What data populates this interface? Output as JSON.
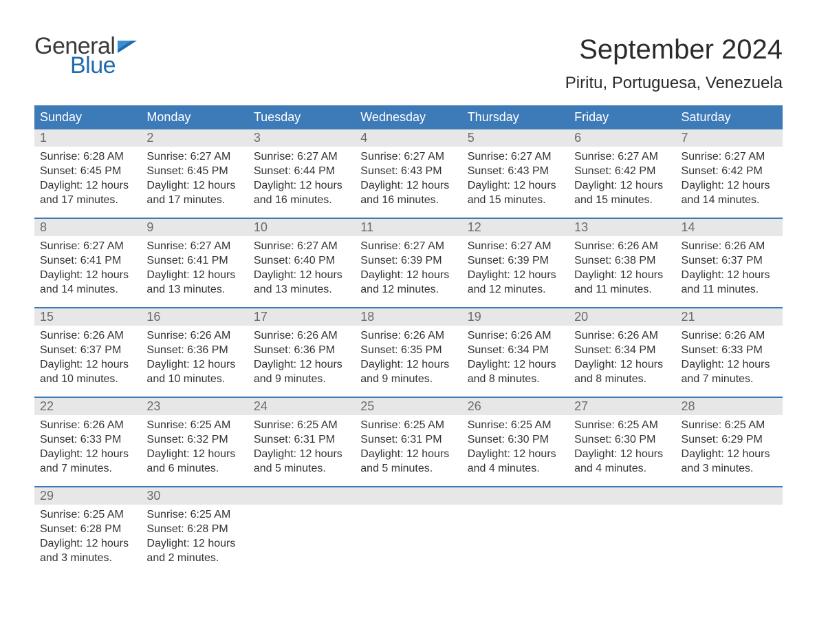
{
  "logo": {
    "word1": "General",
    "word2": "Blue",
    "word1_color": "#3a3a3a",
    "word2_color": "#1f6bb0",
    "flag_color": "#1f6bb0"
  },
  "title": "September 2024",
  "location": "Piritu, Portuguesa, Venezuela",
  "colors": {
    "header_bg": "#3d7ab8",
    "header_text": "#ffffff",
    "daynum_bg": "#e7e7e7",
    "daynum_text": "#6b6b6b",
    "body_text": "#333333",
    "row_border": "#3d7ab8",
    "page_bg": "#ffffff"
  },
  "typography": {
    "month_title_size": 40,
    "location_size": 24,
    "weekday_size": 18,
    "daynum_size": 18,
    "body_size": 16,
    "font_family": "Arial"
  },
  "layout": {
    "columns": 7,
    "rows": 5,
    "cell_min_height": 128
  },
  "weekdays": [
    "Sunday",
    "Monday",
    "Tuesday",
    "Wednesday",
    "Thursday",
    "Friday",
    "Saturday"
  ],
  "weeks": [
    [
      {
        "n": "1",
        "sunrise": "Sunrise: 6:28 AM",
        "sunset": "Sunset: 6:45 PM",
        "d1": "Daylight: 12 hours",
        "d2": "and 17 minutes."
      },
      {
        "n": "2",
        "sunrise": "Sunrise: 6:27 AM",
        "sunset": "Sunset: 6:45 PM",
        "d1": "Daylight: 12 hours",
        "d2": "and 17 minutes."
      },
      {
        "n": "3",
        "sunrise": "Sunrise: 6:27 AM",
        "sunset": "Sunset: 6:44 PM",
        "d1": "Daylight: 12 hours",
        "d2": "and 16 minutes."
      },
      {
        "n": "4",
        "sunrise": "Sunrise: 6:27 AM",
        "sunset": "Sunset: 6:43 PM",
        "d1": "Daylight: 12 hours",
        "d2": "and 16 minutes."
      },
      {
        "n": "5",
        "sunrise": "Sunrise: 6:27 AM",
        "sunset": "Sunset: 6:43 PM",
        "d1": "Daylight: 12 hours",
        "d2": "and 15 minutes."
      },
      {
        "n": "6",
        "sunrise": "Sunrise: 6:27 AM",
        "sunset": "Sunset: 6:42 PM",
        "d1": "Daylight: 12 hours",
        "d2": "and 15 minutes."
      },
      {
        "n": "7",
        "sunrise": "Sunrise: 6:27 AM",
        "sunset": "Sunset: 6:42 PM",
        "d1": "Daylight: 12 hours",
        "d2": "and 14 minutes."
      }
    ],
    [
      {
        "n": "8",
        "sunrise": "Sunrise: 6:27 AM",
        "sunset": "Sunset: 6:41 PM",
        "d1": "Daylight: 12 hours",
        "d2": "and 14 minutes."
      },
      {
        "n": "9",
        "sunrise": "Sunrise: 6:27 AM",
        "sunset": "Sunset: 6:41 PM",
        "d1": "Daylight: 12 hours",
        "d2": "and 13 minutes."
      },
      {
        "n": "10",
        "sunrise": "Sunrise: 6:27 AM",
        "sunset": "Sunset: 6:40 PM",
        "d1": "Daylight: 12 hours",
        "d2": "and 13 minutes."
      },
      {
        "n": "11",
        "sunrise": "Sunrise: 6:27 AM",
        "sunset": "Sunset: 6:39 PM",
        "d1": "Daylight: 12 hours",
        "d2": "and 12 minutes."
      },
      {
        "n": "12",
        "sunrise": "Sunrise: 6:27 AM",
        "sunset": "Sunset: 6:39 PM",
        "d1": "Daylight: 12 hours",
        "d2": "and 12 minutes."
      },
      {
        "n": "13",
        "sunrise": "Sunrise: 6:26 AM",
        "sunset": "Sunset: 6:38 PM",
        "d1": "Daylight: 12 hours",
        "d2": "and 11 minutes."
      },
      {
        "n": "14",
        "sunrise": "Sunrise: 6:26 AM",
        "sunset": "Sunset: 6:37 PM",
        "d1": "Daylight: 12 hours",
        "d2": "and 11 minutes."
      }
    ],
    [
      {
        "n": "15",
        "sunrise": "Sunrise: 6:26 AM",
        "sunset": "Sunset: 6:37 PM",
        "d1": "Daylight: 12 hours",
        "d2": "and 10 minutes."
      },
      {
        "n": "16",
        "sunrise": "Sunrise: 6:26 AM",
        "sunset": "Sunset: 6:36 PM",
        "d1": "Daylight: 12 hours",
        "d2": "and 10 minutes."
      },
      {
        "n": "17",
        "sunrise": "Sunrise: 6:26 AM",
        "sunset": "Sunset: 6:36 PM",
        "d1": "Daylight: 12 hours",
        "d2": "and 9 minutes."
      },
      {
        "n": "18",
        "sunrise": "Sunrise: 6:26 AM",
        "sunset": "Sunset: 6:35 PM",
        "d1": "Daylight: 12 hours",
        "d2": "and 9 minutes."
      },
      {
        "n": "19",
        "sunrise": "Sunrise: 6:26 AM",
        "sunset": "Sunset: 6:34 PM",
        "d1": "Daylight: 12 hours",
        "d2": "and 8 minutes."
      },
      {
        "n": "20",
        "sunrise": "Sunrise: 6:26 AM",
        "sunset": "Sunset: 6:34 PM",
        "d1": "Daylight: 12 hours",
        "d2": "and 8 minutes."
      },
      {
        "n": "21",
        "sunrise": "Sunrise: 6:26 AM",
        "sunset": "Sunset: 6:33 PM",
        "d1": "Daylight: 12 hours",
        "d2": "and 7 minutes."
      }
    ],
    [
      {
        "n": "22",
        "sunrise": "Sunrise: 6:26 AM",
        "sunset": "Sunset: 6:33 PM",
        "d1": "Daylight: 12 hours",
        "d2": "and 7 minutes."
      },
      {
        "n": "23",
        "sunrise": "Sunrise: 6:25 AM",
        "sunset": "Sunset: 6:32 PM",
        "d1": "Daylight: 12 hours",
        "d2": "and 6 minutes."
      },
      {
        "n": "24",
        "sunrise": "Sunrise: 6:25 AM",
        "sunset": "Sunset: 6:31 PM",
        "d1": "Daylight: 12 hours",
        "d2": "and 5 minutes."
      },
      {
        "n": "25",
        "sunrise": "Sunrise: 6:25 AM",
        "sunset": "Sunset: 6:31 PM",
        "d1": "Daylight: 12 hours",
        "d2": "and 5 minutes."
      },
      {
        "n": "26",
        "sunrise": "Sunrise: 6:25 AM",
        "sunset": "Sunset: 6:30 PM",
        "d1": "Daylight: 12 hours",
        "d2": "and 4 minutes."
      },
      {
        "n": "27",
        "sunrise": "Sunrise: 6:25 AM",
        "sunset": "Sunset: 6:30 PM",
        "d1": "Daylight: 12 hours",
        "d2": "and 4 minutes."
      },
      {
        "n": "28",
        "sunrise": "Sunrise: 6:25 AM",
        "sunset": "Sunset: 6:29 PM",
        "d1": "Daylight: 12 hours",
        "d2": "and 3 minutes."
      }
    ],
    [
      {
        "n": "29",
        "sunrise": "Sunrise: 6:25 AM",
        "sunset": "Sunset: 6:28 PM",
        "d1": "Daylight: 12 hours",
        "d2": "and 3 minutes."
      },
      {
        "n": "30",
        "sunrise": "Sunrise: 6:25 AM",
        "sunset": "Sunset: 6:28 PM",
        "d1": "Daylight: 12 hours",
        "d2": "and 2 minutes."
      },
      {
        "empty": true
      },
      {
        "empty": true
      },
      {
        "empty": true
      },
      {
        "empty": true
      },
      {
        "empty": true
      }
    ]
  ]
}
